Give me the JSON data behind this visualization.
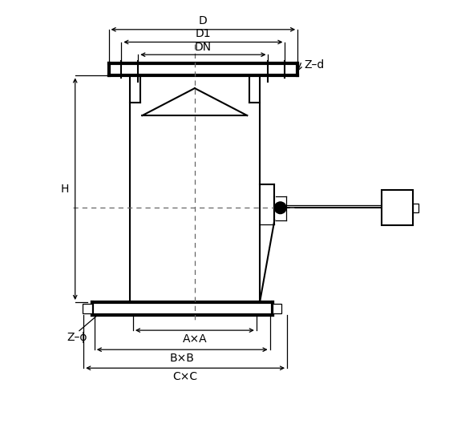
{
  "bg_color": "#ffffff",
  "line_color": "#000000",
  "fig_width": 5.8,
  "fig_height": 5.29,
  "dpi": 100,
  "labels": {
    "D": "D",
    "D1": "D1",
    "DN": "DN",
    "Zd": "Z–d",
    "H": "H",
    "Zphi": "Z–ϕ",
    "AxA": "A×A",
    "BxB": "B×B",
    "CxC": "C×C"
  },
  "font_size": 10
}
